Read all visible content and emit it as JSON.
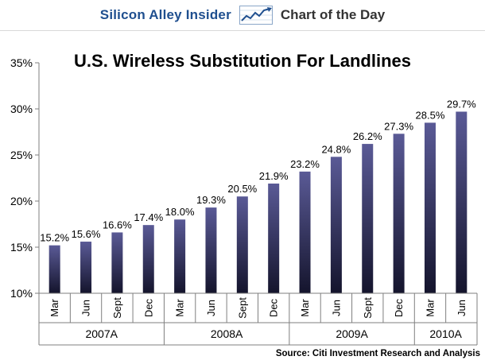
{
  "header": {
    "brand": "Silicon Alley Insider",
    "subtitle": "Chart of the Day",
    "icon": "trend-line-icon"
  },
  "source": "Source: Citi Investment Research and Analysis",
  "colors": {
    "bar_top": "#5a5a96",
    "bar_bottom": "#14142c",
    "axis": "#7f7f7f",
    "text": "#000000",
    "brand": "#1f4f8f"
  },
  "chart_data": {
    "type": "bar",
    "title": "U.S. Wireless Substitution For Landlines",
    "categories": [
      "Mar",
      "Jun",
      "Sept",
      "Dec",
      "Mar",
      "Jun",
      "Sept",
      "Dec",
      "Mar",
      "Jun",
      "Sept",
      "Dec",
      "Mar",
      "Jun"
    ],
    "values": [
      15.2,
      15.6,
      16.6,
      17.4,
      18.0,
      19.3,
      20.5,
      21.9,
      23.2,
      24.8,
      26.2,
      27.3,
      28.5,
      29.7
    ],
    "data_labels": [
      "15.2%",
      "15.6%",
      "16.6%",
      "17.4%",
      "18.0%",
      "19.3%",
      "20.5%",
      "21.9%",
      "23.2%",
      "24.8%",
      "26.2%",
      "27.3%",
      "28.5%",
      "29.7%"
    ],
    "groups": [
      {
        "label": "2007A",
        "count": 4
      },
      {
        "label": "2008A",
        "count": 4
      },
      {
        "label": "2009A",
        "count": 4
      },
      {
        "label": "2010A",
        "count": 2
      }
    ],
    "ylim": [
      10,
      35
    ],
    "yticks": [
      10,
      15,
      20,
      25,
      30,
      35
    ],
    "ytick_labels": [
      "10%",
      "15%",
      "20%",
      "25%",
      "30%",
      "35%"
    ],
    "xlabel": "",
    "ylabel": "",
    "grid": false
  }
}
